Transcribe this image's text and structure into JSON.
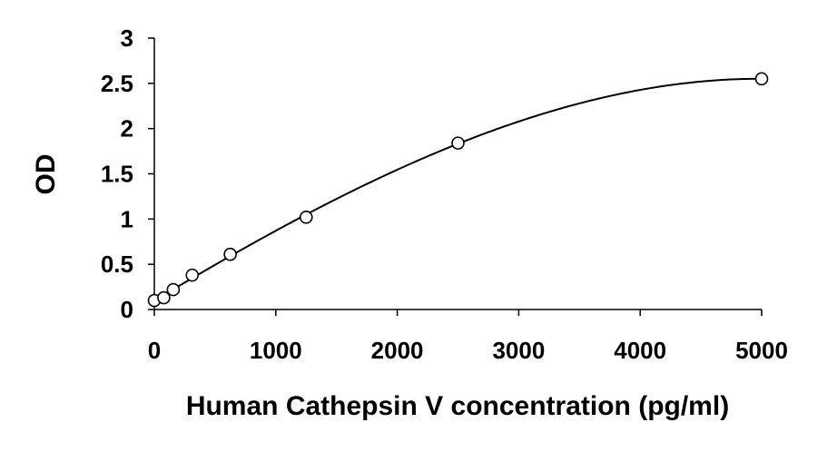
{
  "chart_data": {
    "type": "scatter",
    "title": "",
    "xlabel": "Human Cathepsin V concentration (pg/ml)",
    "ylabel": "OD",
    "xlim": [
      0,
      5000
    ],
    "ylim": [
      0,
      3
    ],
    "x_ticks": [
      "0",
      "1000",
      "2000",
      "3000",
      "4000",
      "5000"
    ],
    "y_ticks": [
      "0",
      "0.5",
      "1",
      "1.5",
      "2",
      "2.5",
      "3"
    ],
    "grid": false,
    "legend": "none",
    "series": [
      {
        "marker": "open-circle",
        "trendline": "smooth-curve",
        "x": [
          0,
          78,
          156,
          312,
          625,
          1250,
          2500,
          5000
        ],
        "y": [
          0.1,
          0.13,
          0.22,
          0.38,
          0.61,
          1.02,
          1.84,
          2.55
        ]
      }
    ],
    "colors": {
      "marker": "#000000",
      "line": "#000000",
      "axis": "#000000"
    }
  }
}
